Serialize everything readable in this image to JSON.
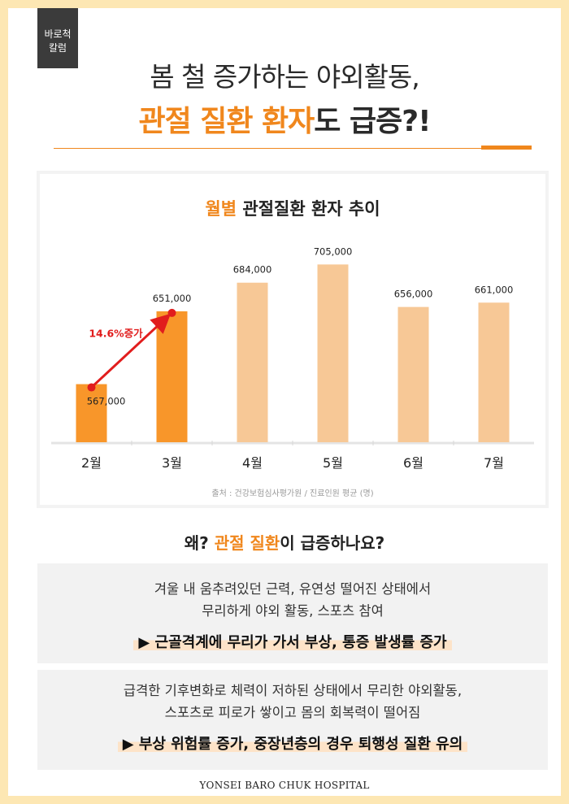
{
  "badge": {
    "line1": "바로척",
    "line2": "칼럼"
  },
  "headline": {
    "line1": "봄 철 증가하는 야외활동,",
    "line2_accent": "관절 질환 환자",
    "line2_rest": "도 급증?!"
  },
  "chart": {
    "title_accent": "월별",
    "title_rest": " 관절질환 환자 추이",
    "source": "출처 : 건강보험심사평가원 / 진료인원 평균 (명)"
  },
  "chart_data": {
    "type": "bar",
    "title": "월별 관절질환 환자 추이",
    "categories": [
      "2월",
      "3월",
      "4월",
      "5월",
      "6월",
      "7월"
    ],
    "values": [
      567000,
      651000,
      684000,
      705000,
      656000,
      661000
    ],
    "value_labels": [
      "567,000",
      "651,000",
      "684,000",
      "705,000",
      "656,000",
      "661,000"
    ],
    "highlight_indices": [
      0,
      1
    ],
    "annotation": {
      "text": "14.6%증가",
      "from_index": 0,
      "to_index": 1
    },
    "colors": {
      "highlight": "#f8962a",
      "normal": "#f7c896",
      "arrow": "#e11d1d",
      "annotation_text": "#e11d1d"
    },
    "xlabel": "",
    "ylabel": "",
    "grid": false,
    "legend": "none"
  },
  "question": {
    "pre": "왜? ",
    "accent": "관절 질환",
    "post": "이 급증하나요?"
  },
  "reasons": [
    {
      "line1": "겨울 내 움추려있던 근력, 유연성 떨어진 상태에서",
      "line2": "무리하게 야외 활동, 스포츠 참여",
      "conclusion": "▶ 근골격계에 무리가 가서 부상, 통증 발생률 증가"
    },
    {
      "line1": "급격한 기후변화로 체력이 저하된 상태에서 무리한 야외활동,",
      "line2": "스포츠로 피로가 쌓이고 몸의 회복력이 떨어짐",
      "conclusion": "▶ 부상 위험률 증가, 중장년층의 경우 퇴행성 질환 유의"
    }
  ],
  "footer": "YONSEI BARO CHUK HOSPITAL",
  "colors": {
    "accent": "#f0871d",
    "frame": "#fde7b3"
  }
}
